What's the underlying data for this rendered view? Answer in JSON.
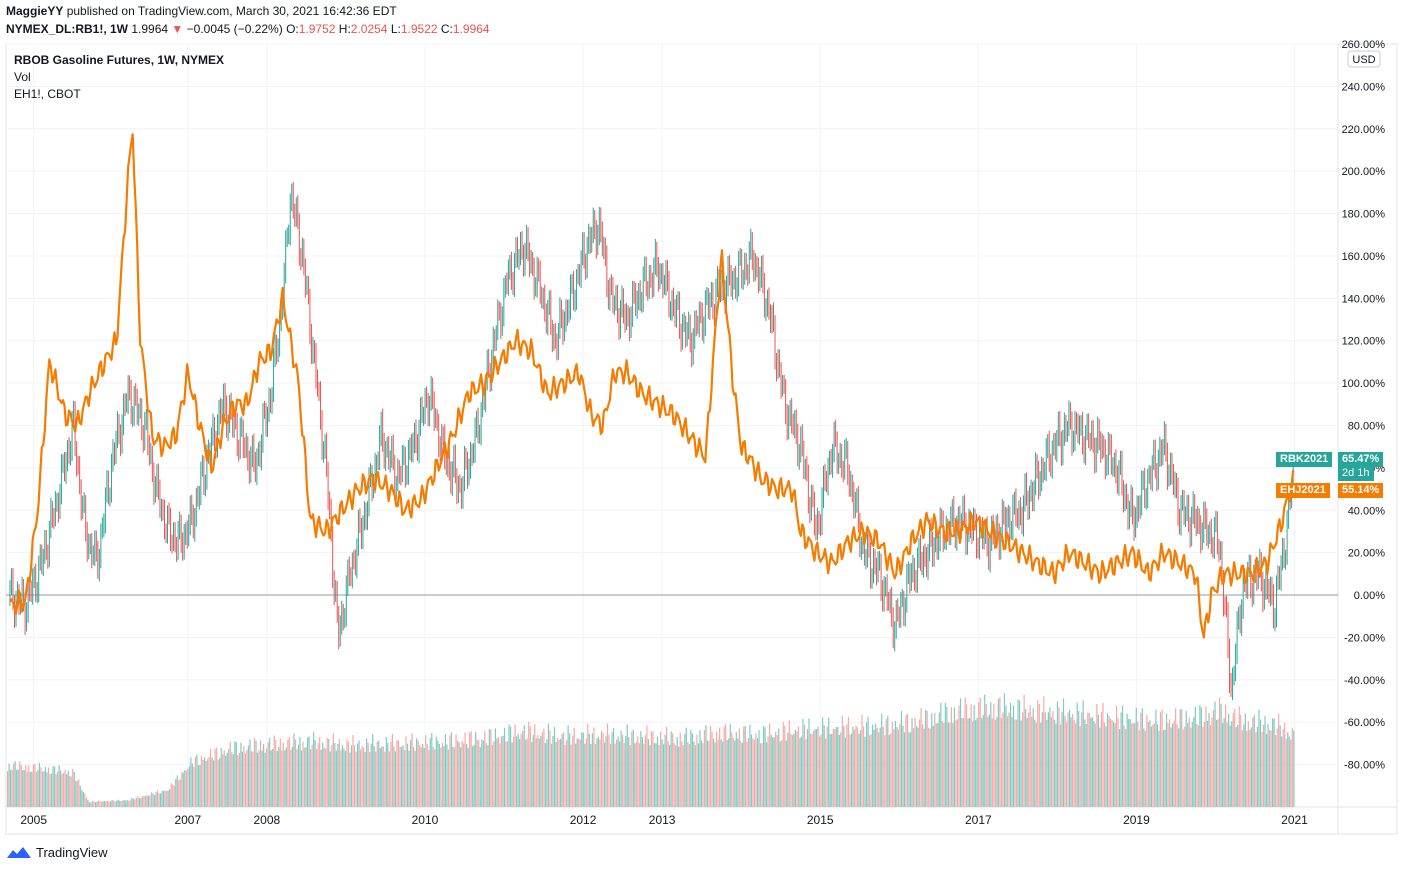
{
  "header": {
    "publisher": "MaggieYY",
    "published_text": "published on TradingView.com, March 30, 2021 16:42:36 EDT",
    "symbol": "NYMEX_DL:RB1!, 1W",
    "last": "1.9964",
    "change": "−0.0045 (−0.22%)",
    "open_label": "O:",
    "open": "1.9752",
    "high_label": "H:",
    "high": "2.0254",
    "low_label": "L:",
    "low": "1.9522",
    "close_label": "C:",
    "close": "1.9964"
  },
  "legend": {
    "main": "RBOB Gasoline Futures, 1W, NYMEX",
    "vol": "Vol",
    "compare": "EH1!, CBOT"
  },
  "currency_badge": "USD",
  "footer": {
    "brand": "TradingView"
  },
  "colors": {
    "up": "#26a69a",
    "down": "#ef5350",
    "ethanol": "#f57c00",
    "grid": "#f0f3fa"
  },
  "chart_data": {
    "type": "line",
    "y_unit": "%",
    "ylim": [
      -100,
      260
    ],
    "y_ticks": [
      260,
      240,
      220,
      200,
      180,
      160,
      140,
      120,
      100,
      80,
      60,
      40,
      20,
      0,
      -20,
      -40,
      -60,
      -80
    ],
    "y_tick_labels": [
      "260.00%",
      "240.00%",
      "220.00%",
      "200.00%",
      "180.00%",
      "160.00%",
      "140.00%",
      "120.00%",
      "100.00%",
      "80.00%",
      "60.00%",
      "40.00%",
      "20.00%",
      "0.00%",
      "-20.00%",
      "-40.00%",
      "-60.00%",
      "-80.00%"
    ],
    "xlim": [
      2004.95,
      2021.8
    ],
    "x_ticks": [
      2005.3,
      2007.25,
      2008.25,
      2010.25,
      2012.25,
      2013.25,
      2015.25,
      2017.25,
      2019.25,
      2021.25
    ],
    "x_tick_labels": [
      "2005",
      "2007",
      "2008",
      "2010",
      "2012",
      "2013",
      "2015",
      "2017",
      "2019",
      "2021"
    ],
    "series": [
      {
        "name": "RB1!",
        "style": "candles",
        "x": [
          2005.0,
          2005.2,
          2005.4,
          2005.6,
          2005.8,
          2005.95,
          2006.1,
          2006.3,
          2006.5,
          2006.7,
          2006.85,
          2007.0,
          2007.15,
          2007.3,
          2007.5,
          2007.7,
          2007.9,
          2008.1,
          2008.3,
          2008.45,
          2008.55,
          2008.7,
          2008.85,
          2009.0,
          2009.15,
          2009.3,
          2009.5,
          2009.7,
          2009.9,
          2010.1,
          2010.3,
          2010.5,
          2010.7,
          2010.9,
          2011.1,
          2011.3,
          2011.5,
          2011.7,
          2011.9,
          2012.1,
          2012.3,
          2012.45,
          2012.6,
          2012.8,
          2013.0,
          2013.2,
          2013.4,
          2013.6,
          2013.8,
          2014.0,
          2014.2,
          2014.4,
          2014.6,
          2014.8,
          2015.0,
          2015.2,
          2015.4,
          2015.6,
          2015.8,
          2016.0,
          2016.2,
          2016.4,
          2016.6,
          2016.8,
          2017.0,
          2017.2,
          2017.4,
          2017.6,
          2017.8,
          2018.0,
          2018.2,
          2018.4,
          2018.6,
          2018.8,
          2019.0,
          2019.2,
          2019.4,
          2019.6,
          2019.8,
          2020.0,
          2020.15,
          2020.3,
          2020.45,
          2020.6,
          2020.8,
          2021.0,
          2021.15,
          2021.25
        ],
        "y": [
          0,
          -5,
          15,
          45,
          80,
          30,
          15,
          65,
          95,
          80,
          50,
          30,
          25,
          35,
          65,
          90,
          75,
          60,
          95,
          140,
          190,
          160,
          110,
          60,
          -20,
          10,
          40,
          75,
          55,
          70,
          95,
          65,
          50,
          75,
          115,
          150,
          165,
          145,
          120,
          140,
          165,
          175,
          140,
          130,
          145,
          155,
          135,
          120,
          135,
          145,
          150,
          160,
          135,
          90,
          70,
          30,
          70,
          60,
          20,
          10,
          -15,
          10,
          20,
          30,
          35,
          30,
          25,
          35,
          40,
          55,
          70,
          80,
          75,
          70,
          60,
          35,
          55,
          70,
          40,
          35,
          30,
          25,
          -45,
          5,
          10,
          -5,
          30,
          65
        ]
      },
      {
        "name": "EH1!",
        "style": "line",
        "x": [
          2005.0,
          2005.2,
          2005.35,
          2005.5,
          2005.7,
          2005.85,
          2006.0,
          2006.2,
          2006.35,
          2006.48,
          2006.55,
          2006.65,
          2006.8,
          2006.95,
          2007.1,
          2007.25,
          2007.4,
          2007.55,
          2007.7,
          2007.85,
          2008.0,
          2008.15,
          2008.3,
          2008.45,
          2008.55,
          2008.65,
          2008.8,
          2009.0,
          2009.2,
          2009.4,
          2009.6,
          2009.8,
          2010.0,
          2010.2,
          2010.4,
          2010.6,
          2010.8,
          2011.0,
          2011.2,
          2011.4,
          2011.6,
          2011.8,
          2012.0,
          2012.2,
          2012.35,
          2012.5,
          2012.65,
          2012.8,
          2013.0,
          2013.2,
          2013.4,
          2013.6,
          2013.8,
          2014.0,
          2014.15,
          2014.25,
          2014.35,
          2014.5,
          2014.7,
          2014.9,
          2015.0,
          2015.2,
          2015.4,
          2015.6,
          2015.8,
          2016.0,
          2016.2,
          2016.4,
          2016.6,
          2016.8,
          2017.0,
          2017.2,
          2017.4,
          2017.6,
          2017.8,
          2018.0,
          2018.2,
          2018.4,
          2018.6,
          2018.8,
          2019.0,
          2019.2,
          2019.4,
          2019.6,
          2019.8,
          2020.0,
          2020.1,
          2020.2,
          2020.35,
          2020.5,
          2020.7,
          2020.9,
          2021.05,
          2021.2,
          2021.25
        ],
        "y": [
          -5,
          -3,
          40,
          110,
          85,
          80,
          95,
          110,
          120,
          190,
          222,
          120,
          75,
          70,
          75,
          105,
          80,
          60,
          80,
          90,
          90,
          110,
          115,
          140,
          120,
          100,
          35,
          30,
          40,
          50,
          55,
          50,
          40,
          45,
          60,
          75,
          95,
          100,
          110,
          120,
          115,
          95,
          100,
          105,
          85,
          80,
          105,
          105,
          95,
          90,
          85,
          75,
          65,
          160,
          100,
          70,
          65,
          55,
          50,
          50,
          30,
          20,
          15,
          25,
          30,
          25,
          10,
          25,
          35,
          30,
          30,
          35,
          30,
          25,
          20,
          15,
          10,
          20,
          15,
          10,
          15,
          20,
          10,
          20,
          15,
          10,
          -20,
          0,
          10,
          10,
          10,
          15,
          30,
          50,
          55
        ]
      },
      {
        "name": "Vol",
        "style": "histogram",
        "x": [
          2005.0,
          2005.5,
          2005.8,
          2006.0,
          2006.5,
          2007.0,
          2007.3,
          2007.8,
          2008.2,
          2008.8,
          2009.3,
          2010.0,
          2010.5,
          2011.0,
          2011.5,
          2012.0,
          2012.5,
          2013.0,
          2013.5,
          2014.0,
          2014.5,
          2015.0,
          2015.5,
          2016.0,
          2016.5,
          2017.0,
          2017.5,
          2018.0,
          2018.5,
          2019.0,
          2019.5,
          2020.0,
          2020.3,
          2020.6,
          2021.0,
          2021.25
        ],
        "y": [
          0.24,
          0.22,
          0.2,
          0.03,
          0.04,
          0.1,
          0.26,
          0.34,
          0.36,
          0.38,
          0.36,
          0.37,
          0.38,
          0.4,
          0.44,
          0.41,
          0.42,
          0.41,
          0.4,
          0.43,
          0.42,
          0.45,
          0.46,
          0.47,
          0.5,
          0.56,
          0.58,
          0.56,
          0.54,
          0.52,
          0.5,
          0.52,
          0.56,
          0.5,
          0.48,
          0.42
        ]
      }
    ],
    "labels": [
      {
        "ticker": "RBK2021",
        "value": "65.47%",
        "sub": "2d 1h"
      },
      {
        "ticker": "EHJ2021",
        "value": "55.14%"
      }
    ]
  }
}
